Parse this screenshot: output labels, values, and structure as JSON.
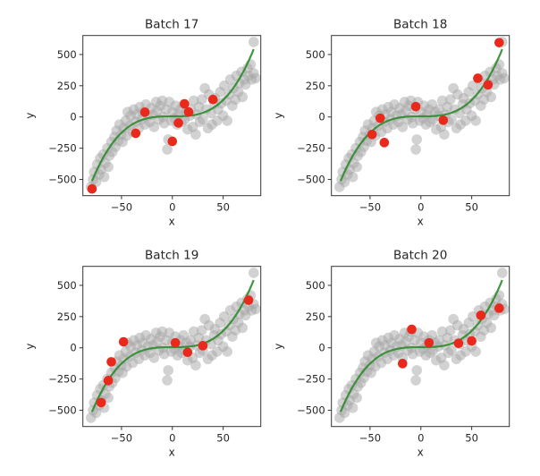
{
  "chart_data": [
    {
      "type": "scatter",
      "title": "Batch 17",
      "xlabel": "x",
      "ylabel": "y",
      "highlight": [
        [
          -79,
          -576
        ],
        [
          -27,
          38
        ],
        [
          -36,
          -131
        ],
        [
          0,
          -195
        ],
        [
          6,
          -48
        ],
        [
          12,
          105
        ],
        [
          16,
          40
        ],
        [
          40,
          140
        ]
      ]
    },
    {
      "type": "scatter",
      "title": "Batch 18",
      "xlabel": "x",
      "ylabel": "y",
      "highlight": [
        [
          77,
          595
        ],
        [
          56,
          310
        ],
        [
          66,
          257
        ],
        [
          -5,
          83
        ],
        [
          -40,
          -10
        ],
        [
          22,
          -26
        ],
        [
          -48,
          -140
        ],
        [
          -36,
          -205
        ]
      ]
    },
    {
      "type": "scatter",
      "title": "Batch 19",
      "xlabel": "x",
      "ylabel": "y",
      "highlight": [
        [
          -70,
          -438
        ],
        [
          -63,
          -262
        ],
        [
          -60,
          -112
        ],
        [
          -48,
          48
        ],
        [
          3,
          40
        ],
        [
          15,
          -36
        ],
        [
          30,
          17
        ],
        [
          75,
          381
        ]
      ]
    },
    {
      "type": "scatter",
      "title": "Batch 20",
      "xlabel": "x",
      "ylabel": "y",
      "highlight": [
        [
          -9,
          148
        ],
        [
          -18,
          -126
        ],
        [
          8,
          40
        ],
        [
          37,
          36
        ],
        [
          50,
          55
        ],
        [
          59,
          260
        ],
        [
          77,
          317
        ]
      ]
    }
  ],
  "shared": {
    "xlim": [
      -88,
      87
    ],
    "ylim": [
      -630,
      652
    ],
    "xticks": [
      -50,
      0,
      50
    ],
    "yticks": [
      -500,
      -250,
      0,
      250,
      500
    ],
    "fit_curve": {
      "coefficients_cubic_to_const": [
        0.00105,
        0,
        0,
        5
      ],
      "x_range": [
        -79,
        80
      ]
    },
    "background_points": [
      [
        -80,
        -560
      ],
      [
        -78,
        -500
      ],
      [
        -77,
        -440
      ],
      [
        -75,
        -520
      ],
      [
        -74,
        -380
      ],
      [
        -72,
        -460
      ],
      [
        -71,
        -330
      ],
      [
        -70,
        -420
      ],
      [
        -68,
        -300
      ],
      [
        -67,
        -480
      ],
      [
        -66,
        -370
      ],
      [
        -64,
        -250
      ],
      [
        -63,
        -400
      ],
      [
        -62,
        -310
      ],
      [
        -60,
        -200
      ],
      [
        -59,
        -280
      ],
      [
        -57,
        -160
      ],
      [
        -56,
        -240
      ],
      [
        -55,
        -110
      ],
      [
        -53,
        -190
      ],
      [
        -52,
        -60
      ],
      [
        -50,
        -140
      ],
      [
        -49,
        -200
      ],
      [
        -48,
        -90
      ],
      [
        -46,
        -30
      ],
      [
        -45,
        -150
      ],
      [
        -44,
        40
      ],
      [
        -42,
        -70
      ],
      [
        -41,
        10
      ],
      [
        -39,
        -120
      ],
      [
        -38,
        60
      ],
      [
        -36,
        -40
      ],
      [
        -35,
        20
      ],
      [
        -33,
        -90
      ],
      [
        -32,
        80
      ],
      [
        -30,
        -20
      ],
      [
        -29,
        40
      ],
      [
        -27,
        -60
      ],
      [
        -26,
        100
      ],
      [
        -24,
        10
      ],
      [
        -22,
        -40
      ],
      [
        -21,
        70
      ],
      [
        -19,
        20
      ],
      [
        -18,
        -80
      ],
      [
        -16,
        120
      ],
      [
        -15,
        50
      ],
      [
        -13,
        -20
      ],
      [
        -12,
        90
      ],
      [
        -10,
        130
      ],
      [
        -9,
        0
      ],
      [
        -8,
        -50
      ],
      [
        -6,
        60
      ],
      [
        -5,
        -260
      ],
      [
        -4,
        -180
      ],
      [
        -3,
        120
      ],
      [
        -1,
        -30
      ],
      [
        0,
        40
      ],
      [
        2,
        -10
      ],
      [
        3,
        90
      ],
      [
        5,
        -60
      ],
      [
        6,
        20
      ],
      [
        8,
        60
      ],
      [
        9,
        -40
      ],
      [
        11,
        100
      ],
      [
        12,
        -20
      ],
      [
        14,
        40
      ],
      [
        15,
        -100
      ],
      [
        17,
        10
      ],
      [
        18,
        60
      ],
      [
        20,
        -80
      ],
      [
        21,
        130
      ],
      [
        23,
        -140
      ],
      [
        24,
        20
      ],
      [
        26,
        80
      ],
      [
        27,
        -40
      ],
      [
        29,
        140
      ],
      [
        30,
        -20
      ],
      [
        32,
        230
      ],
      [
        33,
        60
      ],
      [
        35,
        -90
      ],
      [
        36,
        180
      ],
      [
        38,
        30
      ],
      [
        39,
        -60
      ],
      [
        41,
        100
      ],
      [
        42,
        150
      ],
      [
        44,
        -30
      ],
      [
        45,
        60
      ],
      [
        47,
        200
      ],
      [
        48,
        110
      ],
      [
        50,
        10
      ],
      [
        51,
        250
      ],
      [
        53,
        130
      ],
      [
        54,
        -30
      ],
      [
        56,
        180
      ],
      [
        57,
        300
      ],
      [
        59,
        90
      ],
      [
        60,
        230
      ],
      [
        62,
        140
      ],
      [
        63,
        330
      ],
      [
        65,
        200
      ],
      [
        66,
        270
      ],
      [
        68,
        360
      ],
      [
        69,
        160
      ],
      [
        71,
        300
      ],
      [
        72,
        260
      ],
      [
        74,
        390
      ],
      [
        75,
        330
      ],
      [
        77,
        420
      ],
      [
        78,
        300
      ],
      [
        80,
        600
      ],
      [
        80,
        350
      ],
      [
        82,
        310
      ]
    ],
    "colors": {
      "background": "#a6a6a6",
      "highlight": "#e8291c",
      "curve": "#2e8b2e",
      "axes": "#333333"
    }
  }
}
